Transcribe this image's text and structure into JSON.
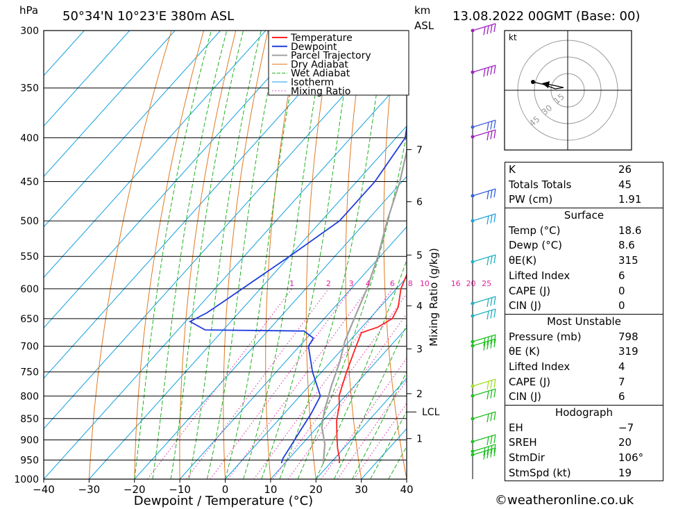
{
  "header": {
    "hpa_label": "hPa",
    "location": "50°34'N  10°23'E  380m  ASL",
    "km_label": "km",
    "asl_label": "ASL",
    "datetime": "13.08.2022  00GMT  (Base: 00)"
  },
  "colors": {
    "temperature": "#ff2020",
    "dewpoint": "#1e3cdc",
    "parcel": "#a0a0a0",
    "dry_adiabat": "#e07820",
    "wet_adiabat": "#20b020",
    "isotherm": "#10a0e0",
    "mixing_ratio": "#e020a0"
  },
  "chart_data": {
    "type": "line",
    "xlabel": "Dewpoint / Temperature (°C)",
    "ylabel": "hPa",
    "y2label": "Mixing Ratio (g/kg)",
    "xlim": [
      -40,
      40
    ],
    "ylim": [
      1000,
      300
    ],
    "x_ticks": [
      -40,
      -30,
      -20,
      -10,
      0,
      10,
      20,
      30,
      40
    ],
    "x_tick_labels": [
      "−40",
      "−30",
      "−20",
      "−10",
      "0",
      "10",
      "20",
      "30",
      "40"
    ],
    "pressure_levels": [
      300,
      350,
      400,
      450,
      500,
      550,
      600,
      650,
      700,
      750,
      800,
      850,
      900,
      950,
      1000
    ],
    "km_ticks": [
      {
        "label": "7",
        "p": 413
      },
      {
        "label": "6",
        "p": 475
      },
      {
        "label": "5",
        "p": 548
      },
      {
        "label": "4",
        "p": 628
      },
      {
        "label": "3",
        "p": 705
      },
      {
        "label": "2",
        "p": 795
      },
      {
        "label": "1",
        "p": 897
      }
    ],
    "lcl": {
      "label": "LCL",
      "p": 835
    },
    "mixing_ratio_labels": {
      "p": 600,
      "values": [
        "1",
        "2",
        "3",
        "4",
        "6",
        "8",
        "10",
        "16",
        "20",
        "25"
      ]
    },
    "legend": {
      "position": "top-right",
      "entries": [
        "Temperature",
        "Dewpoint",
        "Parcel Trajectory",
        "Dry Adiabat",
        "Wet Adiabat",
        "Isotherm",
        "Mixing Ratio"
      ]
    },
    "series": [
      {
        "name": "Temperature",
        "points": [
          [
            22.0,
            958
          ],
          [
            21.0,
            945
          ],
          [
            18.6,
            920
          ],
          [
            16.0,
            890
          ],
          [
            13.0,
            855
          ],
          [
            10.5,
            820
          ],
          [
            8.6,
            800
          ],
          [
            5.5,
            750
          ],
          [
            2.5,
            700
          ],
          [
            1.0,
            675
          ],
          [
            3.5,
            665
          ],
          [
            5.0,
            650
          ],
          [
            4.0,
            630
          ],
          [
            1.0,
            600
          ],
          [
            -2.5,
            550
          ],
          [
            -7.0,
            500
          ],
          [
            -11.5,
            450
          ],
          [
            -17.0,
            400
          ],
          [
            -23.5,
            360
          ],
          [
            -27.0,
            350
          ],
          [
            -40.0,
            300
          ]
        ]
      },
      {
        "name": "Dewpoint",
        "points": [
          [
            9.2,
            958
          ],
          [
            8.6,
            945
          ],
          [
            8.0,
            920
          ],
          [
            7.0,
            880
          ],
          [
            6.0,
            840
          ],
          [
            4.5,
            800
          ],
          [
            -2.0,
            750
          ],
          [
            -8.0,
            700
          ],
          [
            -8.5,
            685
          ],
          [
            -12.0,
            672
          ],
          [
            -34.0,
            670
          ],
          [
            -39.0,
            655
          ],
          [
            -37.0,
            640
          ],
          [
            -35.5,
            620
          ],
          [
            -30.0,
            550
          ],
          [
            -26.0,
            500
          ],
          [
            -26.0,
            480
          ],
          [
            -26.0,
            450
          ],
          [
            -28.0,
            400
          ],
          [
            -32.0,
            375
          ],
          [
            -34.0,
            350
          ],
          [
            -40.0,
            300
          ]
        ]
      },
      {
        "name": "Parcel Trajectory",
        "points": [
          [
            18.6,
            960
          ],
          [
            15.0,
            910
          ],
          [
            11.0,
            870
          ],
          [
            8.5,
            835
          ],
          [
            5.0,
            780
          ],
          [
            2.0,
            730
          ],
          [
            -1.0,
            690
          ],
          [
            -4.0,
            640
          ],
          [
            -6.5,
            600
          ],
          [
            -10.5,
            550
          ],
          [
            -15.5,
            500
          ],
          [
            -20.5,
            450
          ],
          [
            -27.0,
            400
          ],
          [
            -35.0,
            350
          ],
          [
            -40.0,
            330
          ]
        ]
      }
    ],
    "hodograph": {
      "unit_label": "kt",
      "ring_labels": [
        "15",
        "30",
        "45"
      ]
    }
  },
  "stats": {
    "indices": [
      {
        "label": "K",
        "value": "26"
      },
      {
        "label": "Totals Totals",
        "value": "45"
      },
      {
        "label": "PW (cm)",
        "value": "1.91"
      }
    ],
    "surface": {
      "title": "Surface",
      "rows": [
        {
          "label": "Temp (°C)",
          "value": "18.6"
        },
        {
          "label": "Dewp (°C)",
          "value": "8.6"
        },
        {
          "label": "θE(K)",
          "value": "315"
        },
        {
          "label": "Lifted Index",
          "value": "6"
        },
        {
          "label": "CAPE (J)",
          "value": "0"
        },
        {
          "label": "CIN (J)",
          "value": "0"
        }
      ]
    },
    "most_unstable": {
      "title": "Most Unstable",
      "rows": [
        {
          "label": "Pressure (mb)",
          "value": "798"
        },
        {
          "label": "θE (K)",
          "value": "319"
        },
        {
          "label": "Lifted Index",
          "value": "4"
        },
        {
          "label": "CAPE (J)",
          "value": "7"
        },
        {
          "label": "CIN (J)",
          "value": "6"
        }
      ]
    },
    "hodograph": {
      "title": "Hodograph",
      "rows": [
        {
          "label": "EH",
          "value": "−7"
        },
        {
          "label": "SREH",
          "value": "20"
        },
        {
          "label": "StmDir",
          "value": "106°"
        },
        {
          "label": "StmSpd (kt)",
          "value": "19"
        }
      ]
    }
  },
  "footer": {
    "copyright": "©weatheronline.co.uk"
  }
}
